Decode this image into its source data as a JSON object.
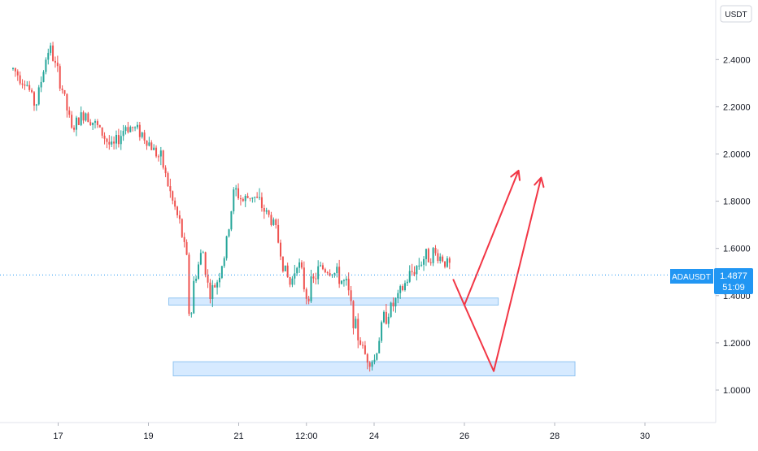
{
  "chart_data": {
    "type": "candlestick",
    "symbol": "ADAUSDT",
    "currency": "USDT",
    "last_price": "1.4877",
    "countdown": "51:09",
    "ylim": [
      0.88,
      2.55
    ],
    "y_ticks": [
      {
        "value": 1.0,
        "label": "1.0000"
      },
      {
        "value": 1.2,
        "label": "1.2000"
      },
      {
        "value": 1.4,
        "label": "1.4000"
      },
      {
        "value": 1.6,
        "label": "1.6000"
      },
      {
        "value": 1.8,
        "label": "1.8000"
      },
      {
        "value": 2.0,
        "label": "2.0000"
      },
      {
        "value": 2.2,
        "label": "2.2000"
      },
      {
        "value": 2.4,
        "label": "2.4000"
      }
    ],
    "x_ticks": [
      {
        "t": 1.0,
        "label": "17"
      },
      {
        "t": 3.0,
        "label": "19"
      },
      {
        "t": 5.0,
        "label": "21"
      },
      {
        "t": 6.5,
        "label": "12:00"
      },
      {
        "t": 8.0,
        "label": "24"
      },
      {
        "t": 10.0,
        "label": "26"
      },
      {
        "t": 12.0,
        "label": "28"
      },
      {
        "t": 14.0,
        "label": "30"
      }
    ],
    "price_path": [
      [
        0.0,
        2.36
      ],
      [
        0.3,
        2.3
      ],
      [
        0.5,
        2.2
      ],
      [
        0.7,
        2.38
      ],
      [
        0.8,
        2.46
      ],
      [
        1.1,
        2.27
      ],
      [
        1.3,
        2.1
      ],
      [
        1.6,
        2.18
      ],
      [
        2.0,
        2.08
      ],
      [
        2.2,
        2.02
      ],
      [
        2.5,
        2.12
      ],
      [
        2.8,
        2.1
      ],
      [
        3.0,
        2.05
      ],
      [
        3.3,
        1.97
      ],
      [
        3.5,
        1.82
      ],
      [
        3.7,
        1.7
      ],
      [
        3.85,
        1.55
      ],
      [
        3.92,
        1.25
      ],
      [
        4.0,
        1.45
      ],
      [
        4.2,
        1.6
      ],
      [
        4.35,
        1.4
      ],
      [
        4.5,
        1.45
      ],
      [
        4.7,
        1.58
      ],
      [
        4.9,
        1.85
      ],
      [
        5.1,
        1.8
      ],
      [
        5.3,
        1.83
      ],
      [
        5.5,
        1.78
      ],
      [
        5.8,
        1.7
      ],
      [
        6.0,
        1.52
      ],
      [
        6.15,
        1.44
      ],
      [
        6.3,
        1.56
      ],
      [
        6.5,
        1.4
      ],
      [
        6.8,
        1.52
      ],
      [
        7.1,
        1.5
      ],
      [
        7.4,
        1.44
      ],
      [
        7.6,
        1.25
      ],
      [
        7.8,
        1.15
      ],
      [
        8.0,
        1.12
      ],
      [
        8.2,
        1.3
      ],
      [
        8.5,
        1.38
      ],
      [
        8.8,
        1.49
      ],
      [
        9.1,
        1.56
      ],
      [
        9.3,
        1.58
      ],
      [
        9.5,
        1.56
      ],
      [
        9.7,
        1.52
      ]
    ],
    "support_zones": [
      {
        "t_start": 3.45,
        "t_end": 10.75,
        "low": 1.36,
        "high": 1.39
      },
      {
        "t_start": 3.55,
        "t_end": 12.45,
        "low": 1.06,
        "high": 1.12
      }
    ],
    "projection_paths": [
      [
        [
          9.75,
          1.47
        ],
        [
          10.0,
          1.36
        ],
        [
          11.2,
          1.93
        ]
      ],
      [
        [
          10.0,
          1.36
        ],
        [
          10.65,
          1.08
        ],
        [
          11.7,
          1.9
        ]
      ]
    ],
    "colors": {
      "up": "#26a69a",
      "down": "#ef5350",
      "zone_fill": "#d6eaff",
      "zone_stroke": "#90c4f0",
      "projection": "#f23645",
      "label_bg": "#2196f3",
      "price_line": "#2196f3",
      "axis_text": "#131722"
    }
  }
}
